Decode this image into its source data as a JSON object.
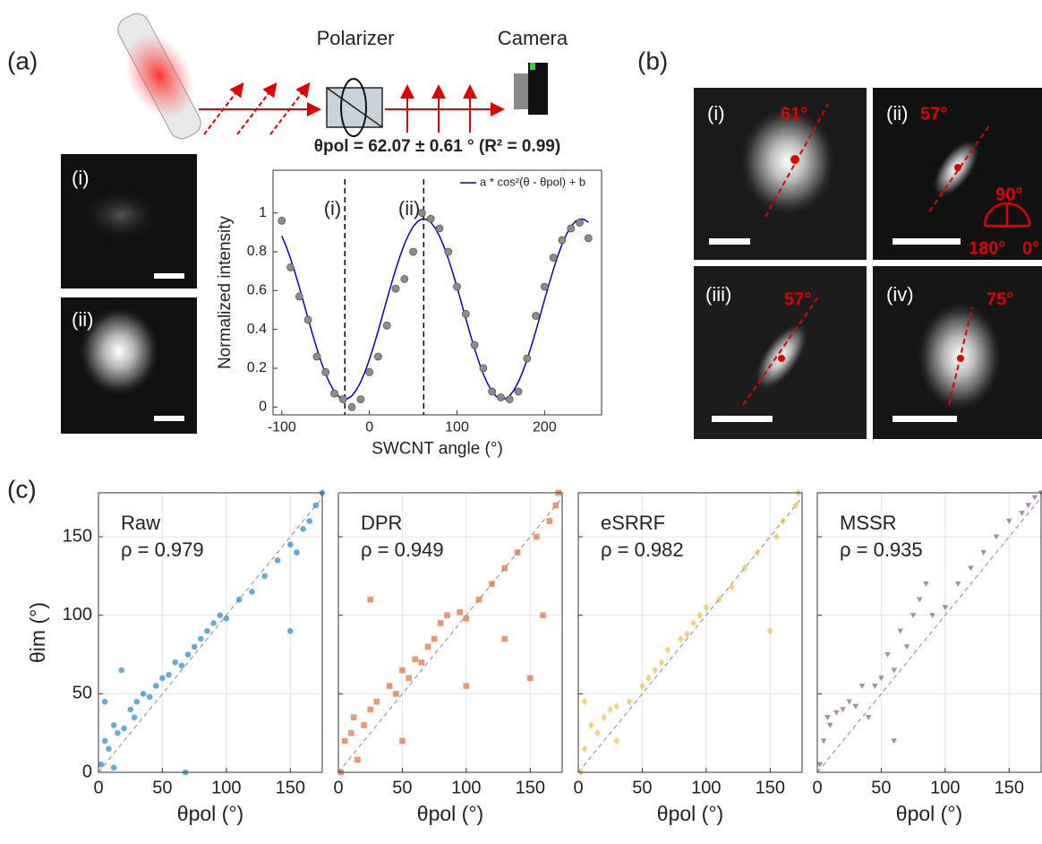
{
  "panel_labels": {
    "a": "(a)",
    "b": "(b)",
    "c": "(c)"
  },
  "schematic": {
    "polarizer": "Polarizer",
    "camera": "Camera"
  },
  "panel_a_images": [
    {
      "label": "(i)"
    },
    {
      "label": "(ii)"
    }
  ],
  "panel_b_images": [
    {
      "label": "(i)",
      "angle": "61°"
    },
    {
      "label": "(ii)",
      "angle": "57°"
    },
    {
      "label": "(iii)",
      "angle": "57°"
    },
    {
      "label": "(iv)",
      "angle": "75°"
    }
  ],
  "angle_inset": {
    "top": "90°",
    "left": "180°",
    "right": "0°"
  },
  "chart_data": [
    {
      "type": "scatter",
      "title": "θpol = 62.07 ± 0.61 ° (R² = 0.99)",
      "xlabel": "SWCNT angle (°)",
      "ylabel": "Normalized intensity",
      "xlim": [
        -110,
        265
      ],
      "ylim": [
        -0.04,
        1.22
      ],
      "xticks": [
        -100,
        0,
        100,
        200
      ],
      "yticks": [
        0,
        0.2,
        0.4,
        0.6,
        0.8,
        1
      ],
      "grid": false,
      "legend": "upper right",
      "series": [
        {
          "marker": "circle",
          "color": "#8c8c8c",
          "x": [
            -100,
            -90,
            -80,
            -70,
            -60,
            -50,
            -40,
            -30,
            -20,
            -10,
            0,
            10,
            20,
            30,
            40,
            50,
            60,
            70,
            80,
            90,
            100,
            110,
            120,
            130,
            140,
            150,
            160,
            170,
            180,
            190,
            200,
            210,
            220,
            230,
            240,
            250
          ],
          "values": [
            0.96,
            0.72,
            0.57,
            0.45,
            0.26,
            0.18,
            0.07,
            0.04,
            0.0,
            0.04,
            0.18,
            0.26,
            0.42,
            0.61,
            0.66,
            0.8,
            1.0,
            0.97,
            0.92,
            0.8,
            0.62,
            0.48,
            0.32,
            0.2,
            0.08,
            0.05,
            0.04,
            0.08,
            0.25,
            0.47,
            0.62,
            0.77,
            0.86,
            0.92,
            0.95,
            0.87
          ]
        }
      ],
      "fit": {
        "name": "a * cos²(θ - θpol) + b",
        "color": "#0000cc",
        "x": [
          -100,
          -95,
          -90,
          -85,
          -80,
          -75,
          -70,
          -65,
          -60,
          -55,
          -50,
          -45,
          -40,
          -35,
          -30,
          -25,
          -20,
          -15,
          -10,
          -5,
          0,
          5,
          10,
          15,
          20,
          25,
          30,
          35,
          40,
          45,
          50,
          55,
          60,
          65,
          70,
          75,
          80,
          85,
          90,
          95,
          100,
          105,
          110,
          115,
          120,
          125,
          130,
          135,
          140,
          145,
          150,
          155,
          160,
          165,
          170,
          175,
          180,
          185,
          190,
          195,
          200,
          205,
          210,
          215,
          220,
          225,
          230,
          235,
          240,
          245,
          250
        ],
        "values": [
          0.881,
          0.828,
          0.765,
          0.694,
          0.618,
          0.537,
          0.456,
          0.377,
          0.301,
          0.232,
          0.17,
          0.12,
          0.08,
          0.054,
          0.041,
          0.043,
          0.058,
          0.087,
          0.129,
          0.182,
          0.245,
          0.316,
          0.392,
          0.473,
          0.554,
          0.633,
          0.709,
          0.778,
          0.84,
          0.89,
          0.93,
          0.956,
          0.969,
          0.967,
          0.952,
          0.923,
          0.881,
          0.828,
          0.765,
          0.694,
          0.618,
          0.537,
          0.456,
          0.377,
          0.301,
          0.232,
          0.17,
          0.12,
          0.08,
          0.054,
          0.041,
          0.043,
          0.058,
          0.087,
          0.129,
          0.182,
          0.245,
          0.316,
          0.392,
          0.473,
          0.554,
          0.633,
          0.709,
          0.778,
          0.84,
          0.89,
          0.93,
          0.956,
          0.969,
          0.967,
          0.952
        ]
      },
      "annotations": [
        {
          "label": "(i)",
          "x": -28
        },
        {
          "label": "(ii)",
          "x": 62
        }
      ]
    },
    {
      "type": "scatter",
      "text": "ρ = 0.979",
      "xlabel": "θpol (°)",
      "ylabel": "θim (°)",
      "xlim": [
        0,
        175
      ],
      "ylim": [
        0,
        178
      ],
      "xticks": [
        0,
        50,
        100,
        150
      ],
      "yticks": [
        0,
        50,
        100,
        150
      ],
      "grid": true,
      "show_ytick_labels": true,
      "series": [
        {
          "name": "Raw",
          "marker": "circle",
          "color": "#0072bd",
          "x": [
            2,
            5,
            8,
            12,
            15,
            18,
            20,
            25,
            28,
            30,
            35,
            40,
            45,
            50,
            55,
            60,
            65,
            68,
            70,
            75,
            80,
            85,
            90,
            95,
            100,
            110,
            120,
            130,
            140,
            150,
            150,
            155,
            160,
            165,
            170,
            175,
            12,
            5
          ],
          "values": [
            5,
            20,
            15,
            30,
            25,
            65,
            28,
            40,
            35,
            45,
            50,
            48,
            55,
            60,
            62,
            70,
            68,
            0,
            75,
            80,
            85,
            90,
            95,
            100,
            98,
            110,
            115,
            125,
            135,
            90,
            145,
            140,
            155,
            160,
            170,
            178,
            3,
            45
          ]
        }
      ]
    },
    {
      "type": "scatter",
      "text": "ρ = 0.949",
      "xlabel": "θpol (°)",
      "xlim": [
        0,
        175
      ],
      "ylim": [
        0,
        178
      ],
      "xticks": [
        0,
        50,
        100,
        150
      ],
      "yticks": [
        0,
        50,
        100,
        150
      ],
      "grid": true,
      "show_ytick_labels": false,
      "series": [
        {
          "name": "DPR",
          "marker": "square",
          "color": "#d95319",
          "x": [
            2,
            5,
            10,
            12,
            15,
            20,
            25,
            25,
            30,
            40,
            45,
            50,
            55,
            60,
            65,
            70,
            75,
            80,
            85,
            95,
            100,
            110,
            120,
            130,
            140,
            150,
            155,
            160,
            165,
            170,
            172,
            50,
            100,
            130
          ],
          "values": [
            0,
            20,
            25,
            35,
            8,
            30,
            110,
            40,
            45,
            55,
            50,
            65,
            60,
            72,
            70,
            80,
            85,
            95,
            100,
            102,
            98,
            110,
            120,
            130,
            140,
            60,
            150,
            100,
            160,
            170,
            178,
            20,
            55,
            85
          ]
        }
      ]
    },
    {
      "type": "scatter",
      "text": "ρ = 0.982",
      "xlabel": "θpol (°)",
      "xlim": [
        0,
        175
      ],
      "ylim": [
        0,
        178
      ],
      "xticks": [
        0,
        50,
        100,
        150
      ],
      "yticks": [
        0,
        50,
        100,
        150
      ],
      "grid": true,
      "show_ytick_labels": false,
      "series": [
        {
          "name": "eSRRF",
          "marker": "diamond",
          "color": "#edb120",
          "x": [
            2,
            5,
            10,
            15,
            20,
            25,
            30,
            40,
            50,
            55,
            60,
            65,
            70,
            80,
            85,
            90,
            95,
            100,
            110,
            120,
            130,
            140,
            150,
            155,
            160,
            170,
            172,
            5,
            30
          ],
          "values": [
            0,
            15,
            30,
            25,
            35,
            40,
            42,
            45,
            55,
            60,
            65,
            70,
            78,
            85,
            88,
            95,
            100,
            105,
            110,
            118,
            130,
            140,
            90,
            150,
            160,
            170,
            178,
            45,
            20
          ]
        }
      ]
    },
    {
      "type": "scatter",
      "text": "ρ = 0.935",
      "xlabel": "θpol (°)",
      "xlim": [
        0,
        175
      ],
      "ylim": [
        0,
        178
      ],
      "xticks": [
        0,
        50,
        100,
        150
      ],
      "yticks": [
        0,
        50,
        100,
        150
      ],
      "grid": true,
      "show_ytick_labels": false,
      "series": [
        {
          "name": "MSSR",
          "marker": "triangle-down",
          "color": "#7e2f8e",
          "x": [
            2,
            5,
            8,
            10,
            15,
            20,
            25,
            30,
            35,
            40,
            45,
            50,
            55,
            60,
            65,
            70,
            75,
            80,
            90,
            100,
            110,
            120,
            130,
            140,
            150,
            160,
            165,
            170,
            175,
            60,
            85
          ],
          "values": [
            5,
            20,
            35,
            30,
            38,
            40,
            45,
            42,
            55,
            35,
            55,
            60,
            75,
            65,
            90,
            80,
            100,
            110,
            100,
            105,
            120,
            130,
            140,
            150,
            160,
            165,
            170,
            175,
            178,
            20,
            120
          ]
        }
      ]
    }
  ]
}
